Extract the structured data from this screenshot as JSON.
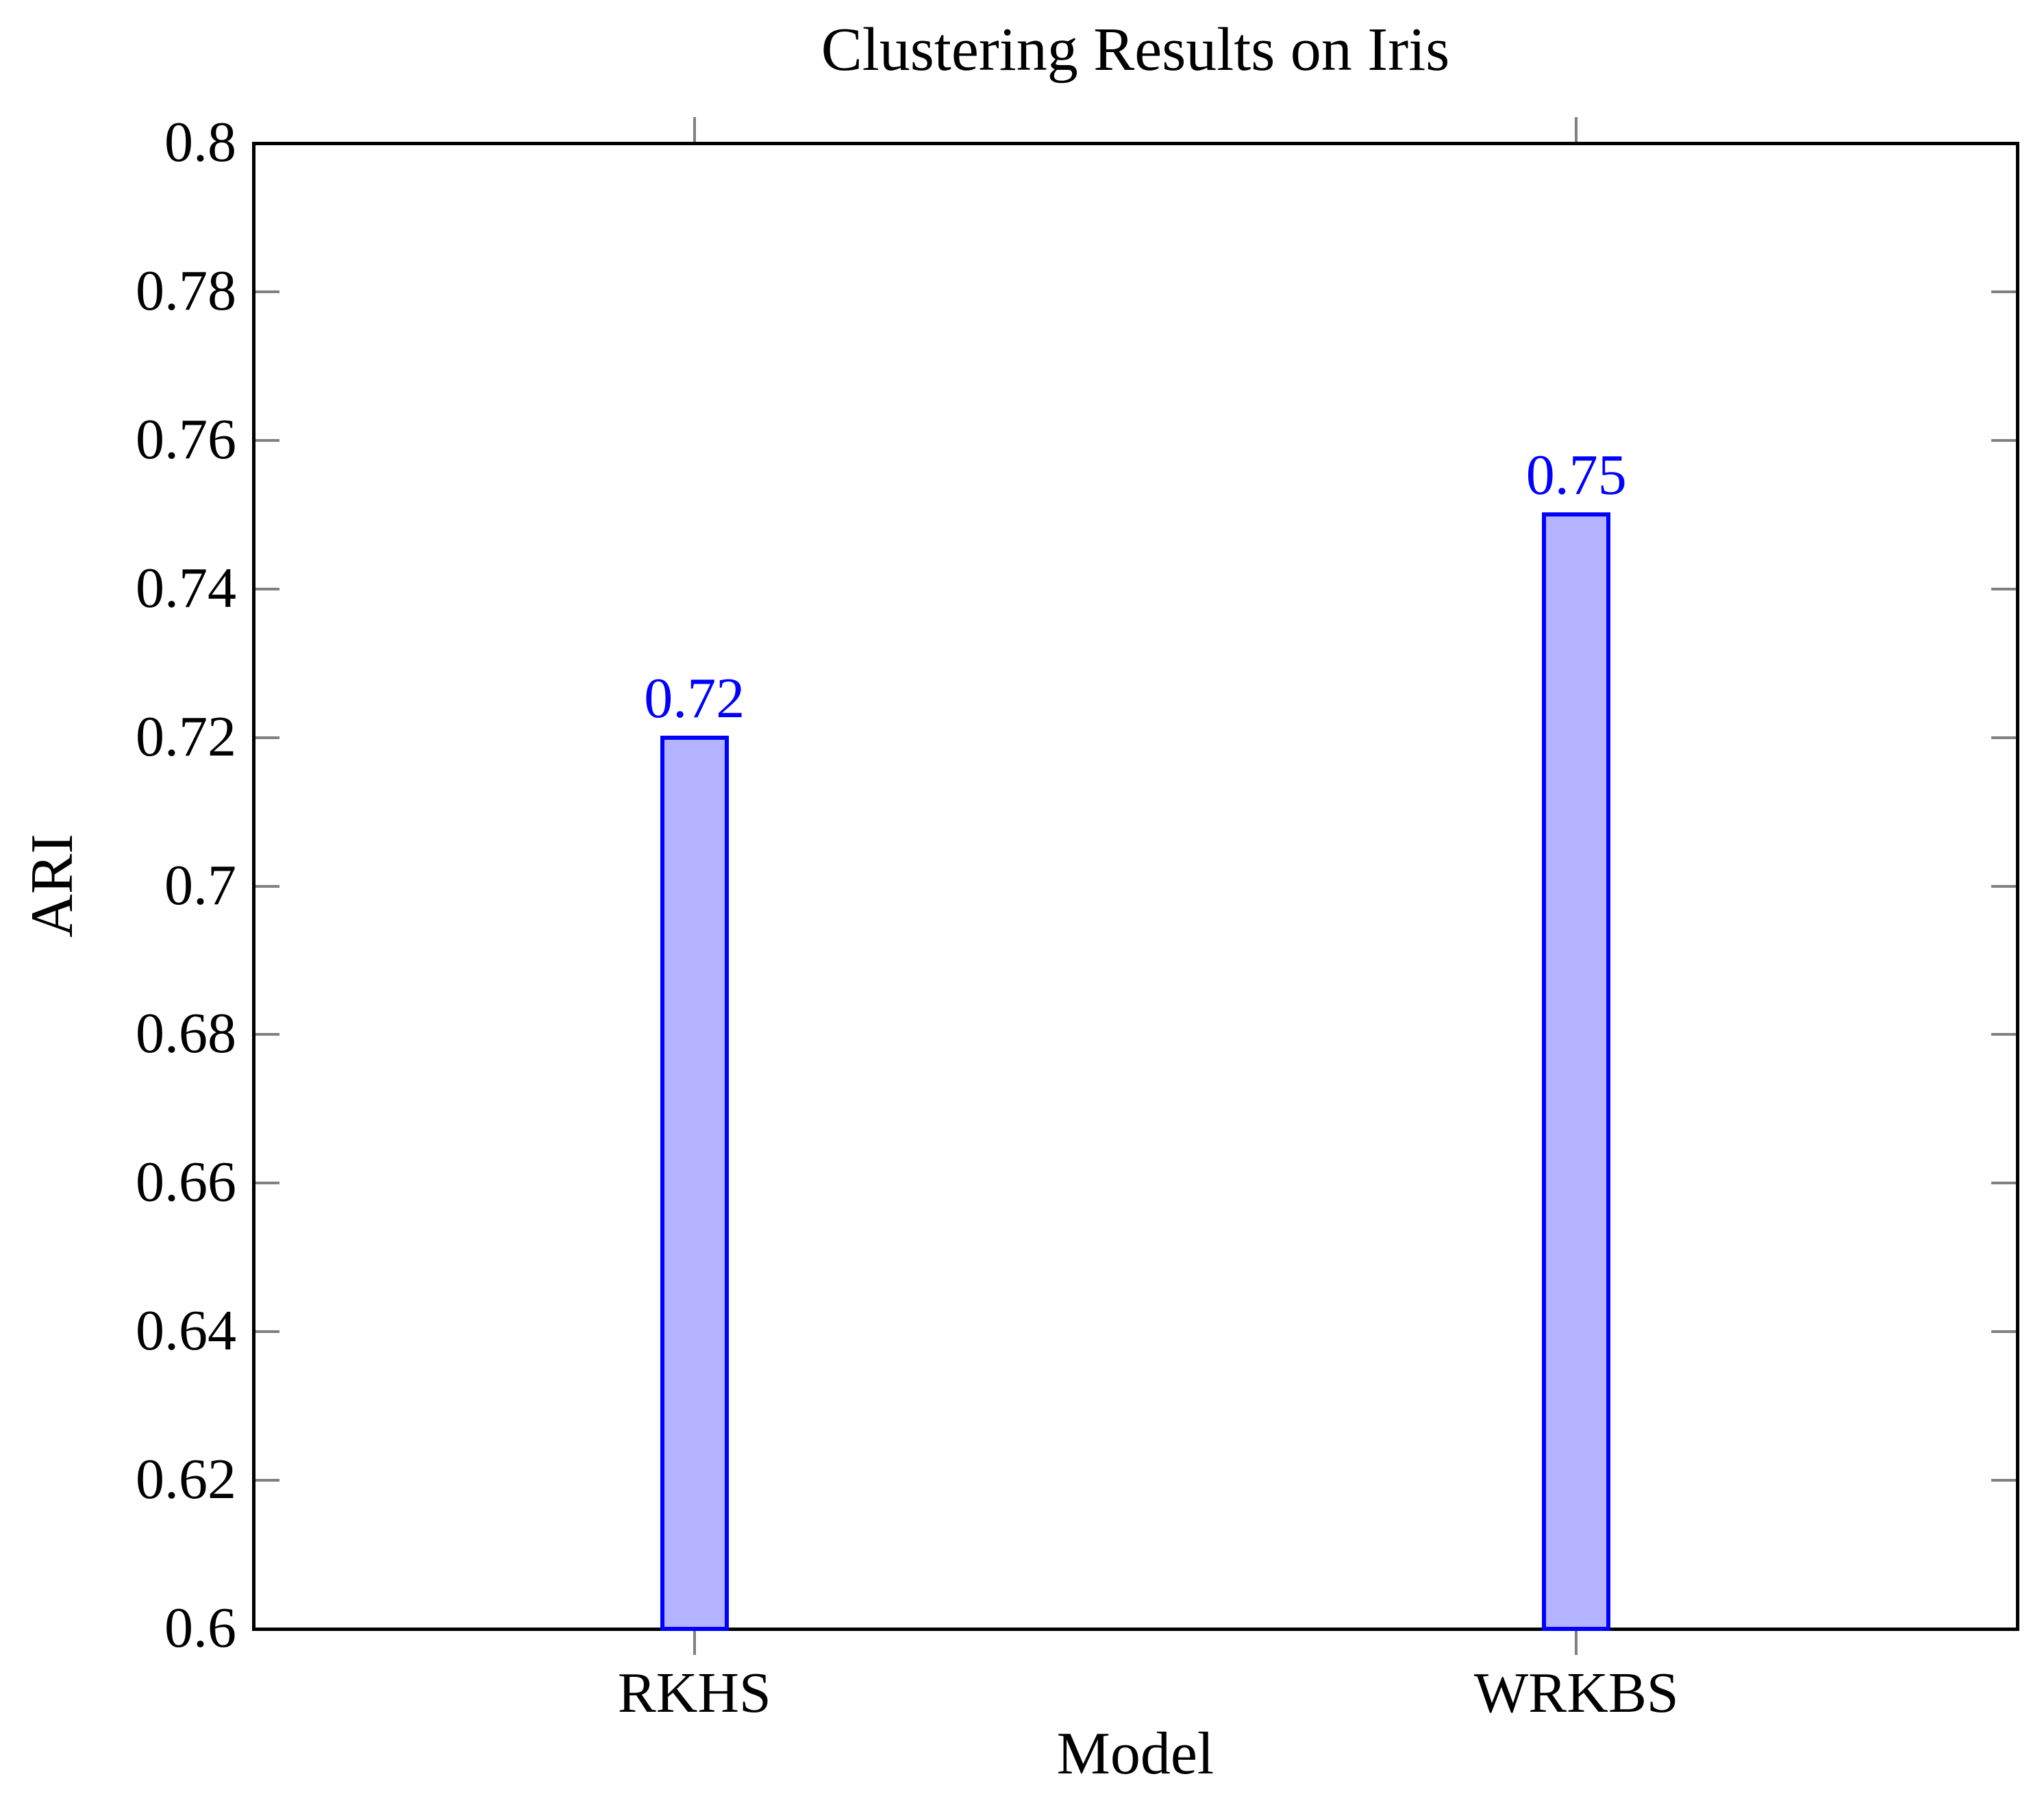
{
  "figure": {
    "title": "Clustering Results on Iris",
    "xlabel": "Model",
    "ylabel": "ARI"
  },
  "chart_data": {
    "type": "bar",
    "title": "Clustering Results on Iris",
    "xlabel": "Model",
    "ylabel": "ARI",
    "categories": [
      "RKHS",
      "WRKBS"
    ],
    "values": [
      0.72,
      0.75
    ],
    "bar_value_labels": [
      "0.72",
      "0.75"
    ],
    "ylim": [
      0.6,
      0.8
    ],
    "yticks": [
      0.8,
      0.78,
      0.76,
      0.74,
      0.72,
      0.7,
      0.68,
      0.66,
      0.64,
      0.62,
      0.6
    ],
    "ytick_labels": [
      "0.8",
      "0.78",
      "0.76",
      "0.74",
      "0.72",
      "0.7",
      "0.68",
      "0.66",
      "0.64",
      "0.62",
      "0.6"
    ],
    "grid": false,
    "legend": null,
    "tick_direction": {
      "x": "out",
      "y": "in"
    },
    "colors": {
      "bar_fill": "#b3b3ff",
      "bar_border": "#0000ff",
      "value_label": "#0000ff",
      "tick": "#808080",
      "frame": "#000000",
      "text": "#000000",
      "background": "#ffffff"
    }
  }
}
